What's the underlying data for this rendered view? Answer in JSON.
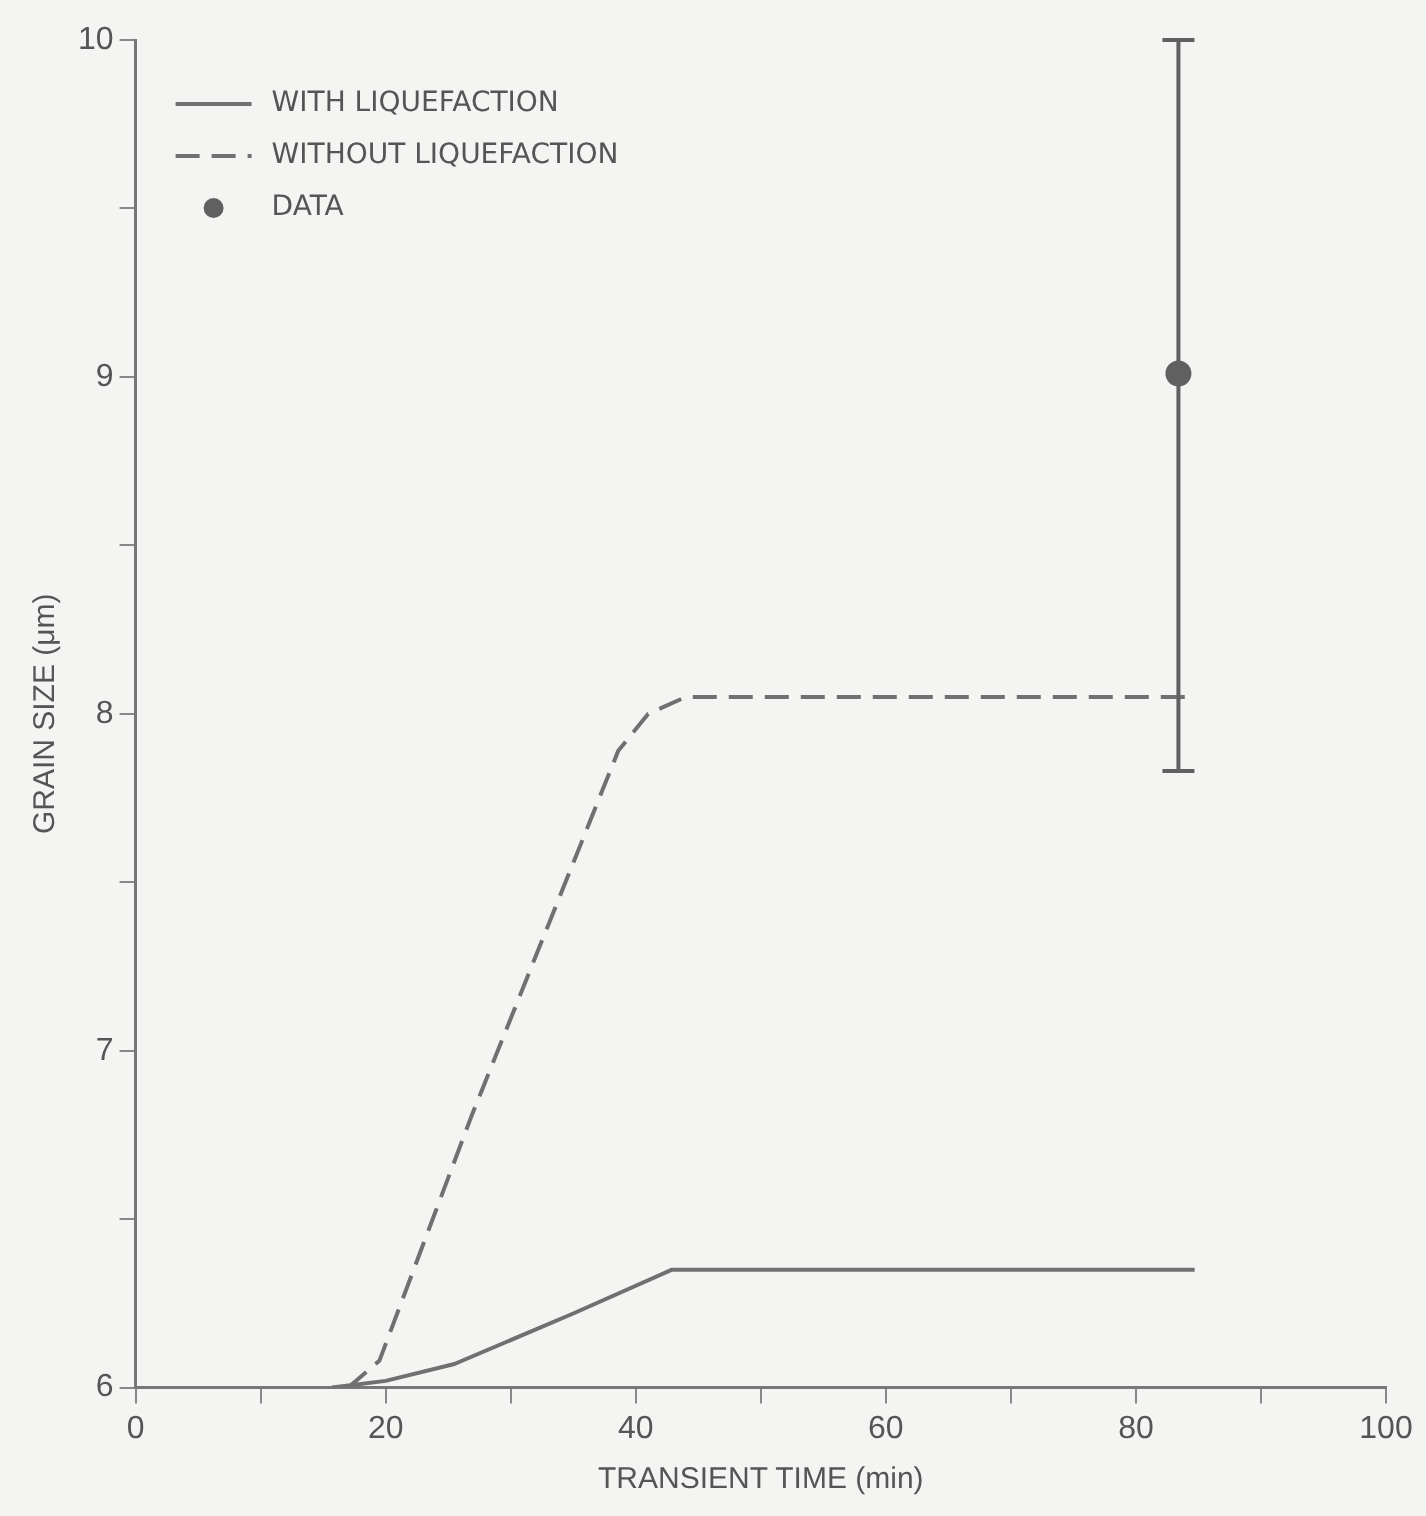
{
  "chart_data": {
    "type": "line",
    "xlabel": "TRANSIENT TIME (min)",
    "ylabel": "GRAIN SIZE (μm)",
    "xlim": [
      0,
      100
    ],
    "xticks": [
      0,
      {
        "value": 10,
        "label": null
      },
      20,
      {
        "value": 30,
        "label": null
      },
      40,
      {
        "value": 50,
        "label": null
      },
      60,
      {
        "value": 70,
        "label": null
      },
      80,
      {
        "value": 90,
        "label": null
      },
      100
    ],
    "ylim": [
      6,
      10
    ],
    "yticks": [
      6,
      {
        "value": 6.5,
        "label": null
      },
      7,
      {
        "value": 7.5,
        "label": null
      },
      8,
      {
        "value": 8.5,
        "label": null
      },
      9,
      {
        "value": 9.5,
        "label": null
      },
      10
    ],
    "grid": false,
    "legend": "top left",
    "series": [
      {
        "name": "WITH LIQUEFACTION",
        "line_style": "solid",
        "marker": "none",
        "color": "#707070",
        "x": [
          15.7,
          20,
          25.5,
          35,
          42.9,
          84.7
        ],
        "values": [
          6,
          6.02,
          6.07,
          6.22,
          6.35,
          6.35
        ]
      },
      {
        "name": "WITHOUT LIQUEFACTION",
        "line_style": "dashed",
        "marker": "none",
        "color": "#707070",
        "x": [
          17,
          19.5,
          26.8,
          38.6,
          41,
          44,
          84.1
        ],
        "values": [
          6,
          6.08,
          6.8,
          7.89,
          8,
          8.05,
          8.05
        ]
      },
      {
        "name": "DATA",
        "type": "scatter",
        "marker": "circle",
        "color": "#606060",
        "x": [
          83.4
        ],
        "values": [
          9.01
        ],
        "errors": [
          [
            7.83,
            10
          ]
        ]
      }
    ]
  }
}
